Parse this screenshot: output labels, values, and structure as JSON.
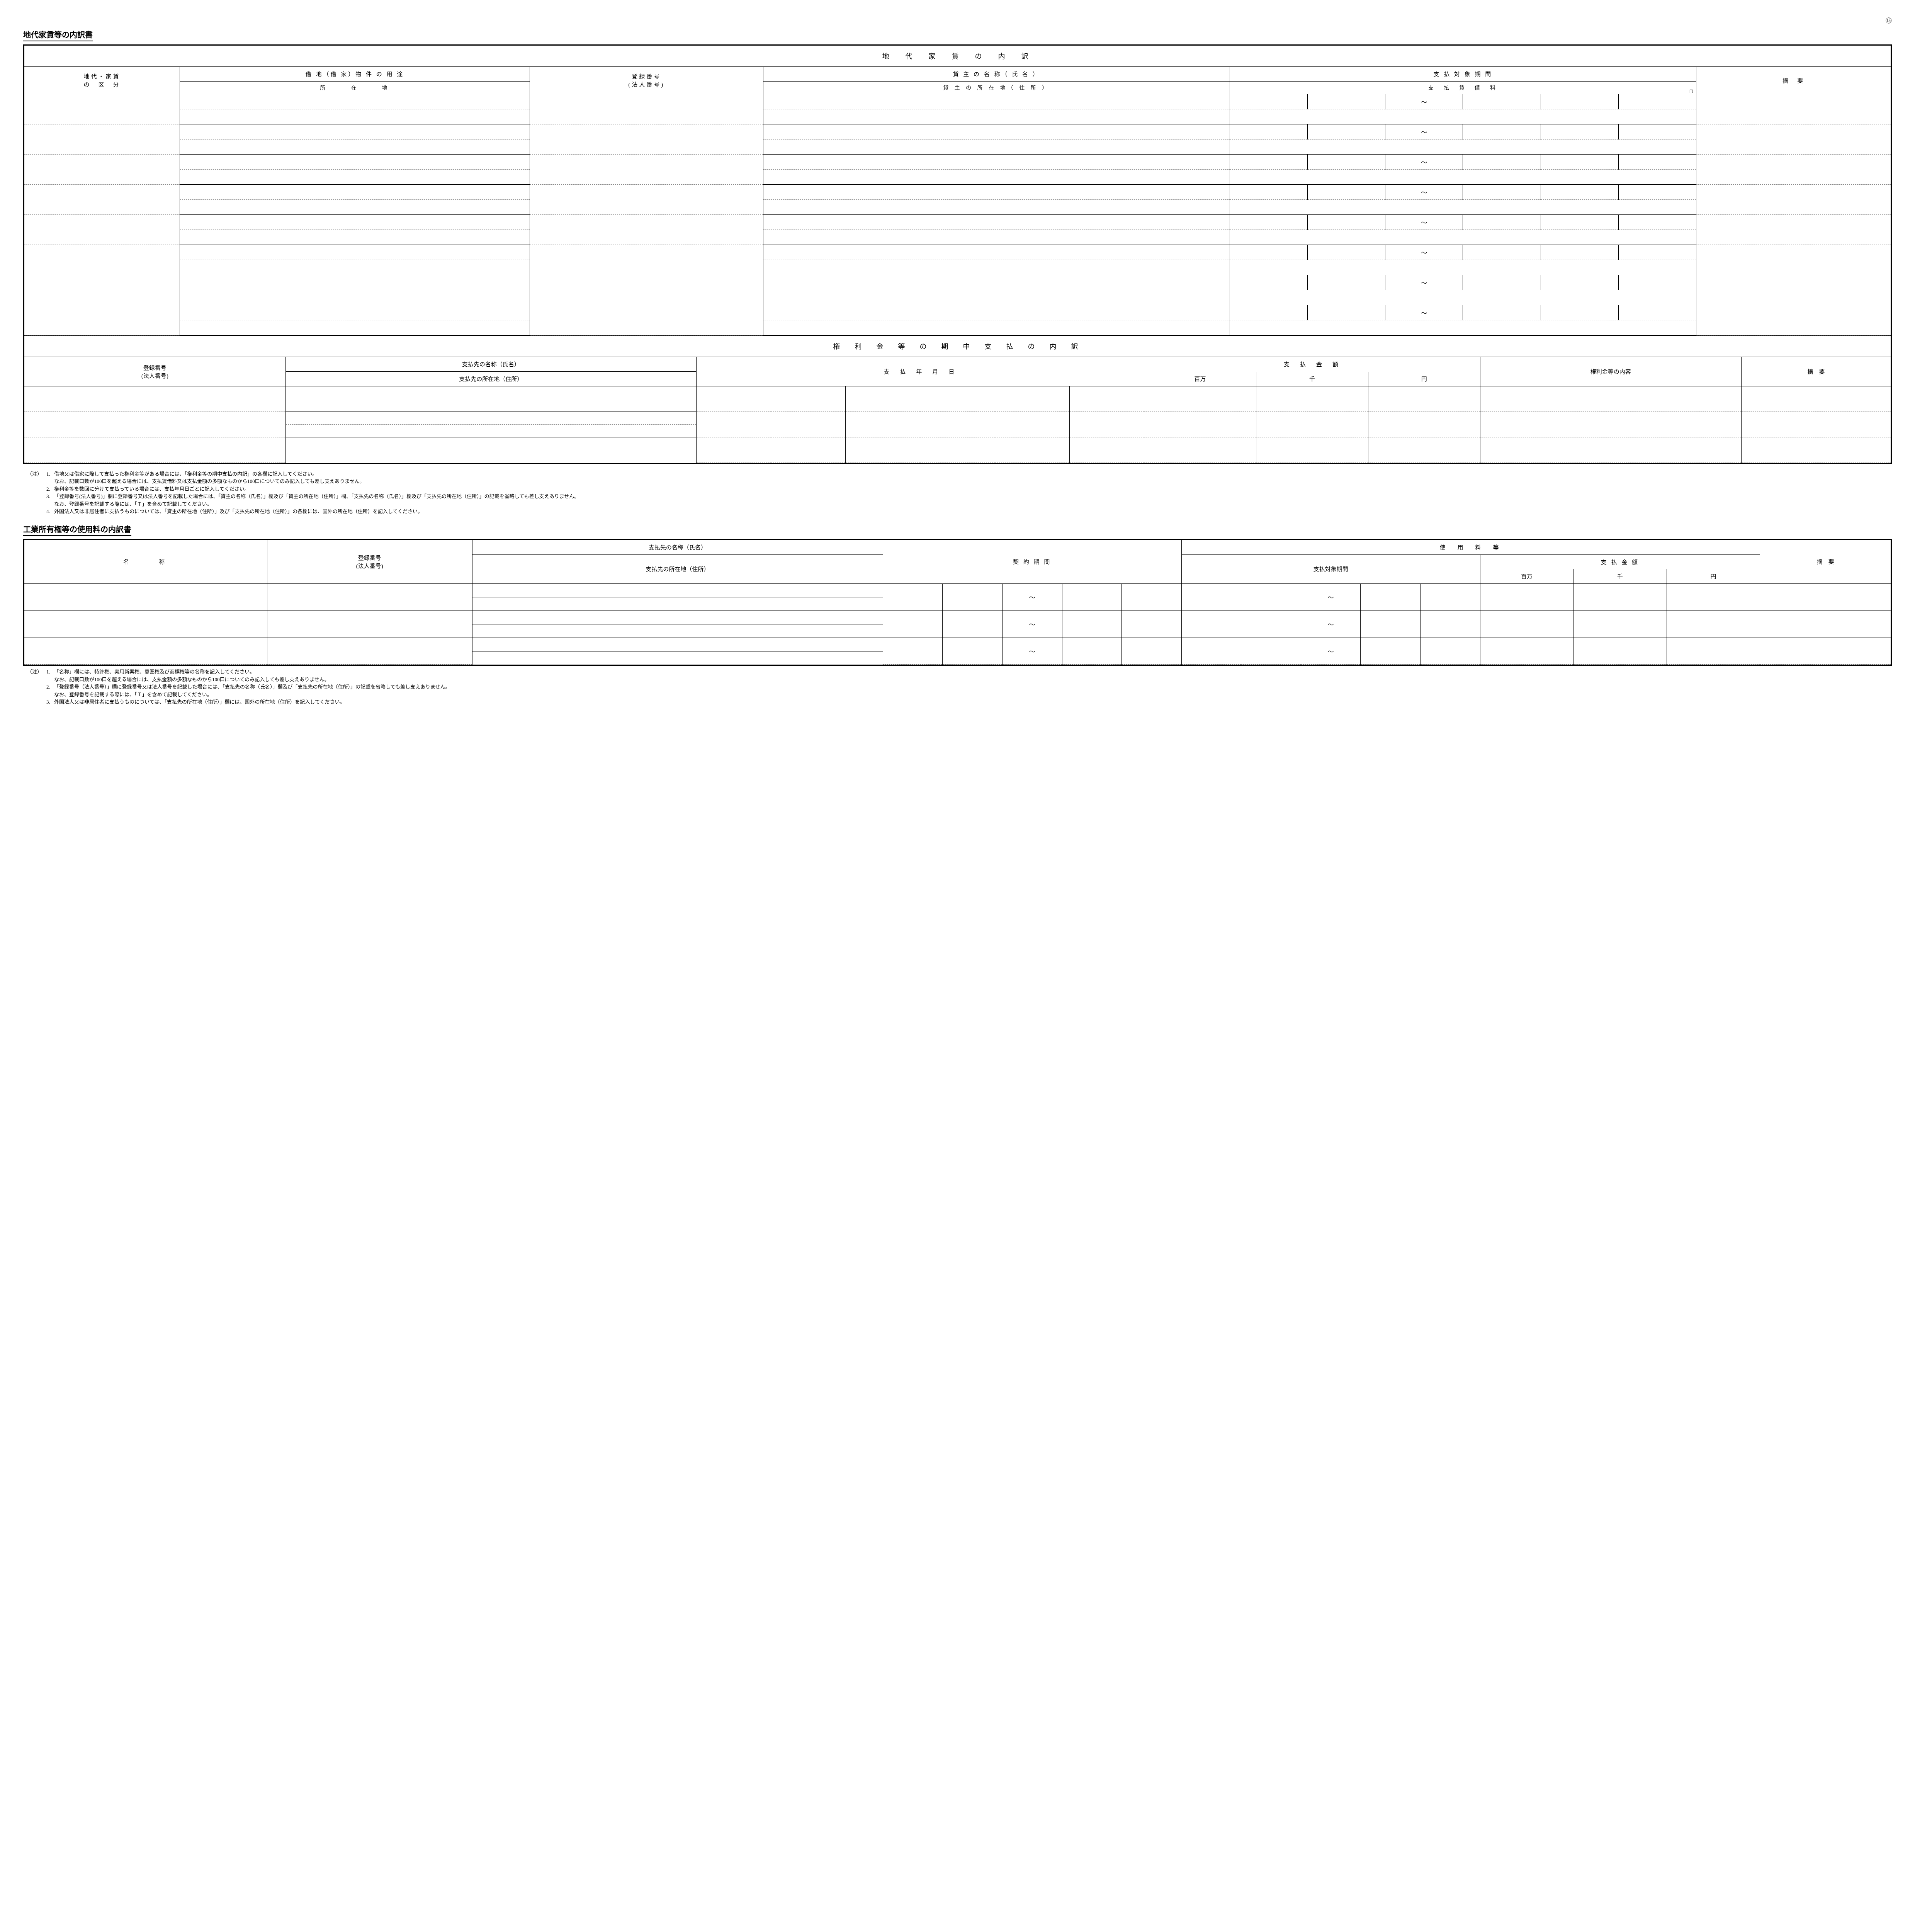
{
  "page_number_circled": "⑮",
  "doc1_title": "地代家賃等の内訳書",
  "doc2_title": "工業所有権等の使用料の内訳書",
  "section1_title": "地　代　家　賃　の　内　訳",
  "section2_title": "権　利　金　等　の　期　中　支　払　の　内　訳",
  "t1_headers": {
    "c1_top": "地代・家賃",
    "c1_bottom": "の　区　分",
    "c2_top": "借 地（借 家）物 件 の 用 途",
    "c2_bottom": "所　　　在　　　地",
    "c3_top": "登録番号",
    "c3_bottom": "(法人番号)",
    "c4_top": "貸 主 の 名 称（ 氏 名 ）",
    "c4_bottom": "貸 主 の 所 在 地（ 住 所 ）",
    "c5_top": "支 払 対 象 期 間",
    "c5_bottom": "支　払　賃　借　料",
    "c6": "摘　要"
  },
  "t1_tilde": "～",
  "t1_row_count": 8,
  "t2_headers": {
    "c1_top": "登録番号",
    "c1_bottom": "(法人番号)",
    "c2_top": "支払先の名称（氏名）",
    "c2_bottom": "支払先の所在地（住所）",
    "c3": "支　払　年　月　日",
    "c4": "支　払　金　額",
    "c4_units": [
      "百万",
      "千",
      "円"
    ],
    "c5": "権利金等の内容",
    "c6": "摘　要"
  },
  "t2_row_count": 3,
  "notes1": [
    "借地又は借家に際して支払った権利金等がある場合には、「権利金等の期中支払の内訳」の各欄に記入してください。",
    "なお、記載口数が100口を超える場合には、支払賃借料又は支払金額の多額なものから100口についてのみ記入しても差し支えありません。",
    "権利金等を数回に分けて支払っている場合には、支払年月日ごとに記入してください。",
    "「登録番号(法人番号)」欄に登録番号又は法人番号を記載した場合には、「貸主の名称（氏名）」欄及び「貸主の所在地（住所）」欄、「支払先の名称（氏名）」欄及び「支払先の所在地（住所）」の記載を省略しても差し支えありません。",
    "なお、登録番号を記載する際には、「Ｔ」を含めて記載してください。",
    "外国法人又は非居住者に支払うものについては、「貸主の所在地（住所）」及び「支払先の所在地（住所）」の各欄には、国外の所在地（住所）を記入してください。"
  ],
  "t3_headers": {
    "c1": "名　　　称",
    "c2_top": "登録番号",
    "c2_bottom": "(法人番号)",
    "c3_top": "支払先の名称（氏名）",
    "c3_bottom": "支払先の所在地（住所）",
    "c4": "契 約 期 間",
    "c5": "使　用　料　等",
    "c5a": "支払対象期間",
    "c5b": "支 払 金 額",
    "c5b_units": [
      "百万",
      "千",
      "円"
    ],
    "c6": "摘　要"
  },
  "t3_row_count": 3,
  "t3_tilde": "～",
  "notes2": [
    "「名称」欄には、特許権、実用新案権、意匠権及び商標権等の名称を記入してください。",
    "なお、記載口数が100口を超える場合には、支払金額の多額なものから100口についてのみ記入しても差し支えありません。",
    "「登録番号（法人番号）」欄に登録番号又は法人番号を記載した場合には、「支払先の名称（氏名）」欄及び「支払先の所在地（住所）」の記載を省略しても差し支えありません。",
    "なお、登録番号を記載する際には、「Ｔ」を含めて記載してください。",
    "外国法人又は非居住者に支払うものについては、「支払先の所在地（住所）」欄には、国外の所在地（住所）を記入してください。"
  ],
  "notes_label": "（注）"
}
